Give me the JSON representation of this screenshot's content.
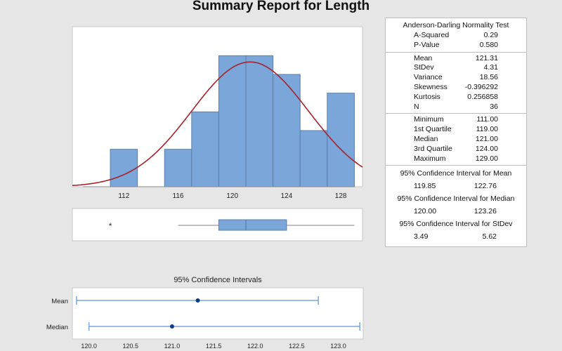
{
  "title": "Summary Report for Length",
  "stats": {
    "ad_header": "Anderson-Darling Normality Test",
    "ad_rows": [
      {
        "label": "A-Squared",
        "value": "0.29"
      },
      {
        "label": "P-Value",
        "value": "0.580"
      }
    ],
    "moment_rows": [
      {
        "label": "Mean",
        "value": "121.31"
      },
      {
        "label": "StDev",
        "value": "4.31"
      },
      {
        "label": "Variance",
        "value": "18.56"
      },
      {
        "label": "Skewness",
        "value": "-0.396292"
      },
      {
        "label": "Kurtosis",
        "value": "0.256858"
      },
      {
        "label": "N",
        "value": "36"
      }
    ],
    "quartile_rows": [
      {
        "label": "Minimum",
        "value": "111.00"
      },
      {
        "label": "1st Quartile",
        "value": "119.00"
      },
      {
        "label": "Median",
        "value": "121.00"
      },
      {
        "label": "3rd Quartile",
        "value": "124.00"
      },
      {
        "label": "Maximum",
        "value": "129.00"
      }
    ],
    "ci": [
      {
        "header": "95% Confidence Interval for Mean",
        "low": "119.85",
        "high": "122.76"
      },
      {
        "header": "95% Confidence Interval for Median",
        "low": "120.00",
        "high": "123.26"
      },
      {
        "header": "95% Confidence Interval for StDev",
        "low": "3.49",
        "high": "5.62"
      }
    ]
  },
  "chart_data": [
    {
      "type": "bar",
      "subtype": "histogram",
      "bins": [
        [
          111,
          113
        ],
        [
          113,
          115
        ],
        [
          115,
          117
        ],
        [
          117,
          119
        ],
        [
          119,
          121
        ],
        [
          121,
          123
        ],
        [
          123,
          125
        ],
        [
          125,
          127
        ],
        [
          127,
          129
        ]
      ],
      "values": [
        2,
        0,
        2,
        4,
        7,
        7,
        6,
        3,
        5
      ],
      "xticks": [
        "112",
        "116",
        "120",
        "124",
        "128"
      ],
      "xlim": [
        108.2,
        129.6
      ],
      "ylim": [
        0,
        8.1
      ],
      "normal_fit": {
        "mean": 121.31,
        "stdev": 4.31,
        "n": 36
      },
      "bar_color": "#7ba6da",
      "curve_color": "#a5222a",
      "grid": false
    },
    {
      "type": "boxplot",
      "whisker_low": 116,
      "q1": 119,
      "median": 121,
      "q3": 124,
      "whisker_high": 129,
      "outliers": [
        111
      ],
      "outlier_symbol": "*",
      "xlim": [
        108.2,
        129.6
      ]
    },
    {
      "type": "interval",
      "title": "95% Confidence Intervals",
      "categories": [
        "Mean",
        "Median"
      ],
      "estimates": [
        121.31,
        121.0
      ],
      "lower": [
        119.85,
        120.0
      ],
      "upper": [
        122.76,
        123.26
      ],
      "xticks": [
        "120.0",
        "120.5",
        "121.0",
        "121.5",
        "122.0",
        "122.5",
        "123.0"
      ],
      "xlim": [
        119.8,
        123.3
      ],
      "color": "#7ba6da",
      "point_color": "#0b3c8c"
    }
  ]
}
